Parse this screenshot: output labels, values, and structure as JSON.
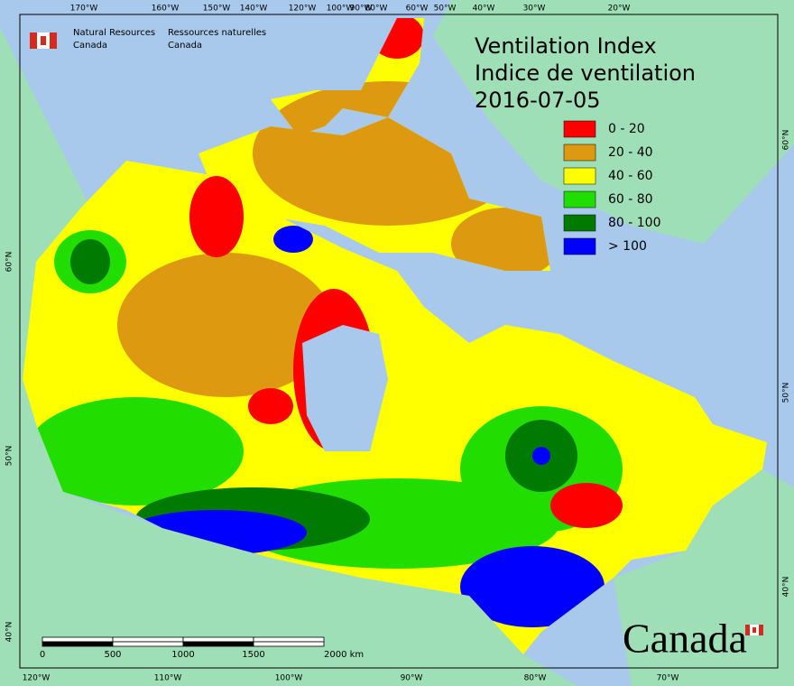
{
  "title": {
    "line1": "Ventilation Index",
    "line2": "Indice de ventilation",
    "date": "2016-07-05"
  },
  "agency": {
    "en": [
      "Natural Resources",
      "Canada"
    ],
    "fr": [
      "Ressources naturelles",
      "Canada"
    ]
  },
  "legend": [
    {
      "label": "0 - 20",
      "color": "#ff0000"
    },
    {
      "label": "20 - 40",
      "color": "#dd9a10"
    },
    {
      "label": "40 - 60",
      "color": "#ffff00"
    },
    {
      "label": "60 - 80",
      "color": "#22dd00"
    },
    {
      "label": "80 - 100",
      "color": "#007a00"
    },
    {
      "label": "> 100",
      "color": "#0000ff"
    }
  ],
  "graticule": {
    "top": [
      "170°W",
      "160°W",
      "150°W",
      "140°W",
      "120°W",
      "100°W",
      "90°W",
      "80°W",
      "60°W",
      "50°W",
      "40°W",
      "30°W",
      "20°W"
    ],
    "bottom": [
      "120°W",
      "110°W",
      "100°W",
      "90°W",
      "80°W",
      "70°W"
    ],
    "left": [
      "60°N",
      "50°N",
      "40°N"
    ],
    "right": [
      "60°N",
      "50°N",
      "40°N"
    ]
  },
  "scale_bar": [
    "0",
    "500",
    "1000",
    "1500",
    "2000 km"
  ],
  "wordmark": "Canada"
}
